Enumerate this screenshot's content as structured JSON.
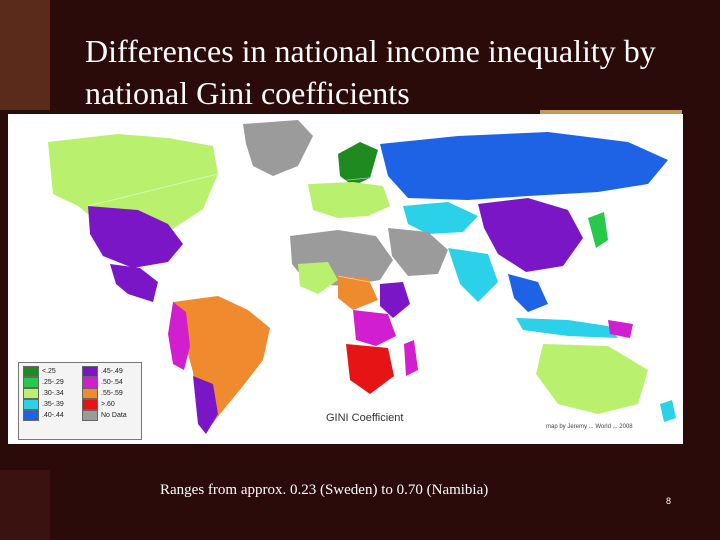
{
  "slide": {
    "title": "Differences in national income inequality by national Gini coefficients",
    "caption": "Ranges from approx. 0.23 (Sweden) to 0.70 (Namibia)",
    "page_number": "8"
  },
  "map": {
    "title": "GINI Coefficient",
    "source_note": "map by Jeremy ... World ... 2008"
  },
  "legend": {
    "items": [
      {
        "label": "<.25",
        "color": "#1f8a1f"
      },
      {
        "label": ".45-.49",
        "color": "#7b16c7"
      },
      {
        "label": ".25-.29",
        "color": "#26c94a"
      },
      {
        "label": ".50-.54",
        "color": "#d11fcf"
      },
      {
        "label": ".30-.34",
        "color": "#b9f06d"
      },
      {
        "label": ".55-.59",
        "color": "#f08a2e"
      },
      {
        "label": ".35-.39",
        "color": "#2bd1e8"
      },
      {
        "label": ">.60",
        "color": "#e61414"
      },
      {
        "label": ".40-.44",
        "color": "#1e63e6"
      },
      {
        "label": "No Data",
        "color": "#9b9b9b"
      }
    ]
  }
}
